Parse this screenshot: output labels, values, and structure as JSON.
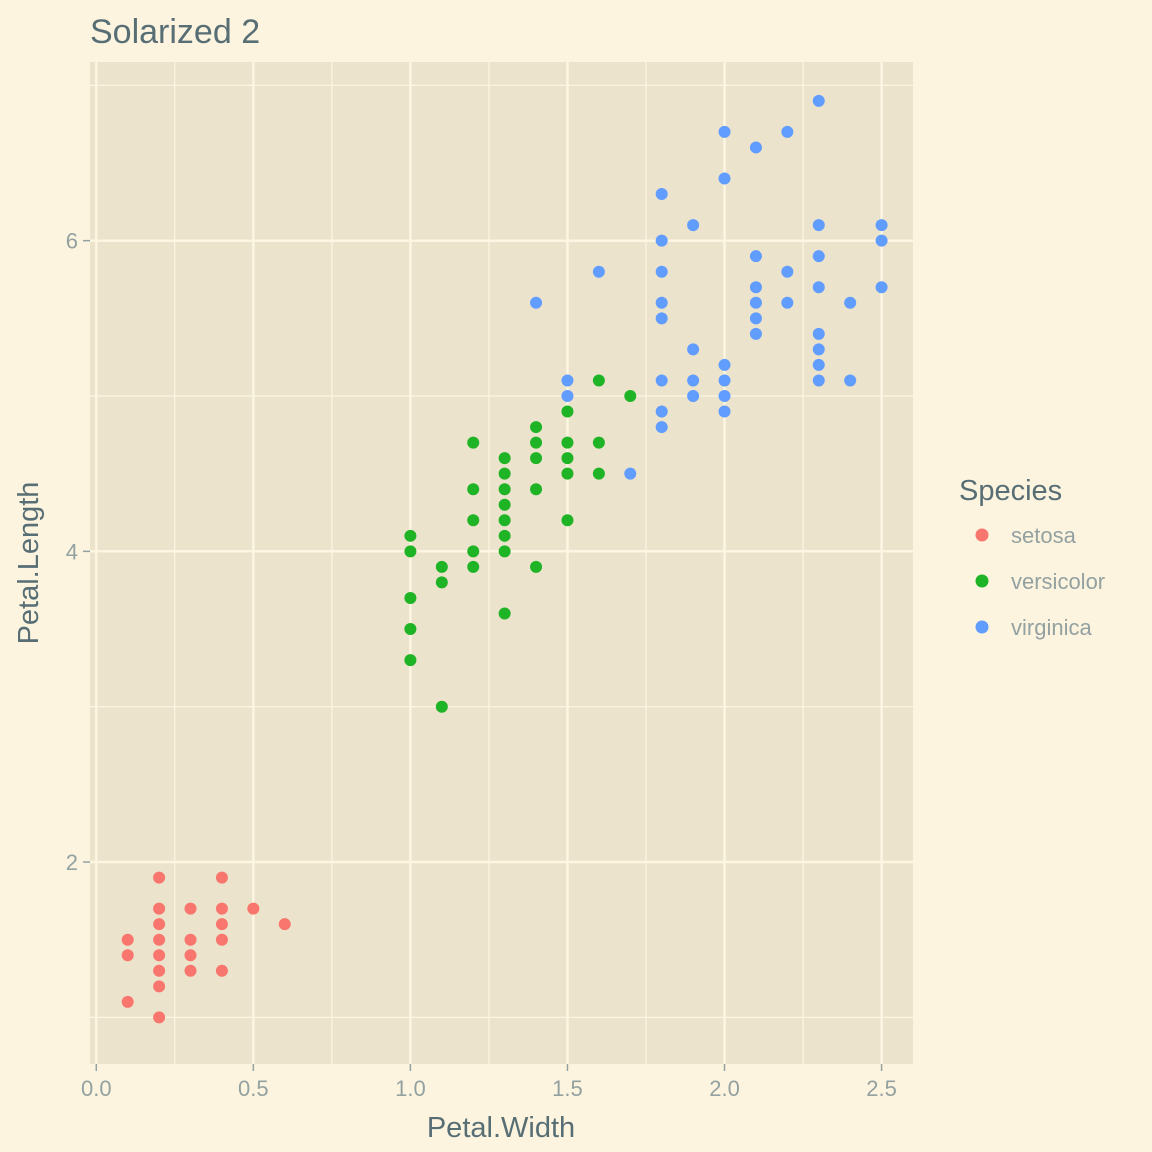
{
  "chart_data": {
    "type": "scatter",
    "title": "Solarized 2",
    "xlabel": "Petal.Width",
    "ylabel": "Petal.Length",
    "xlim": [
      -0.02,
      2.6
    ],
    "ylim": [
      0.7,
      7.15
    ],
    "x_ticks": [
      0.0,
      0.5,
      1.0,
      1.5,
      2.0,
      2.5
    ],
    "x_tick_labels": [
      "0.0",
      "0.5",
      "1.0",
      "1.5",
      "2.0",
      "2.5"
    ],
    "y_ticks": [
      2,
      4,
      6
    ],
    "y_tick_labels": [
      "2",
      "4",
      "6"
    ],
    "grid": true,
    "legend": {
      "title": "Species",
      "position": "right",
      "entries": [
        "setosa",
        "versicolor",
        "virginica"
      ]
    },
    "series": [
      {
        "name": "setosa",
        "color": "#f8766d",
        "points": [
          [
            0.1,
            1.1
          ],
          [
            0.1,
            1.4
          ],
          [
            0.1,
            1.5
          ],
          [
            0.2,
            1.0
          ],
          [
            0.2,
            1.2
          ],
          [
            0.2,
            1.3
          ],
          [
            0.2,
            1.4
          ],
          [
            0.2,
            1.5
          ],
          [
            0.2,
            1.6
          ],
          [
            0.2,
            1.7
          ],
          [
            0.2,
            1.9
          ],
          [
            0.3,
            1.3
          ],
          [
            0.3,
            1.4
          ],
          [
            0.3,
            1.5
          ],
          [
            0.3,
            1.7
          ],
          [
            0.4,
            1.3
          ],
          [
            0.4,
            1.5
          ],
          [
            0.4,
            1.6
          ],
          [
            0.4,
            1.7
          ],
          [
            0.4,
            1.9
          ],
          [
            0.5,
            1.7
          ],
          [
            0.6,
            1.6
          ]
        ]
      },
      {
        "name": "versicolor",
        "color": "#1fb326",
        "points": [
          [
            1.0,
            3.3
          ],
          [
            1.0,
            3.5
          ],
          [
            1.0,
            3.7
          ],
          [
            1.0,
            4.0
          ],
          [
            1.0,
            4.1
          ],
          [
            1.1,
            3.0
          ],
          [
            1.1,
            3.8
          ],
          [
            1.1,
            3.9
          ],
          [
            1.2,
            3.9
          ],
          [
            1.2,
            4.0
          ],
          [
            1.2,
            4.2
          ],
          [
            1.2,
            4.4
          ],
          [
            1.2,
            4.7
          ],
          [
            1.3,
            3.6
          ],
          [
            1.3,
            4.0
          ],
          [
            1.3,
            4.1
          ],
          [
            1.3,
            4.2
          ],
          [
            1.3,
            4.3
          ],
          [
            1.3,
            4.4
          ],
          [
            1.3,
            4.5
          ],
          [
            1.3,
            4.6
          ],
          [
            1.4,
            3.9
          ],
          [
            1.4,
            4.4
          ],
          [
            1.4,
            4.6
          ],
          [
            1.4,
            4.7
          ],
          [
            1.4,
            4.8
          ],
          [
            1.5,
            4.2
          ],
          [
            1.5,
            4.5
          ],
          [
            1.5,
            4.6
          ],
          [
            1.5,
            4.7
          ],
          [
            1.5,
            4.9
          ],
          [
            1.6,
            4.5
          ],
          [
            1.6,
            4.7
          ],
          [
            1.6,
            5.1
          ],
          [
            1.7,
            5.0
          ]
        ]
      },
      {
        "name": "virginica",
        "color": "#619cff",
        "points": [
          [
            1.4,
            5.6
          ],
          [
            1.5,
            5.0
          ],
          [
            1.5,
            5.1
          ],
          [
            1.6,
            5.8
          ],
          [
            1.7,
            4.5
          ],
          [
            1.8,
            4.8
          ],
          [
            1.8,
            4.9
          ],
          [
            1.8,
            5.1
          ],
          [
            1.8,
            5.5
          ],
          [
            1.8,
            5.6
          ],
          [
            1.8,
            5.8
          ],
          [
            1.8,
            6.0
          ],
          [
            1.8,
            6.3
          ],
          [
            1.9,
            5.0
          ],
          [
            1.9,
            5.1
          ],
          [
            1.9,
            5.3
          ],
          [
            1.9,
            6.1
          ],
          [
            2.0,
            4.9
          ],
          [
            2.0,
            5.0
          ],
          [
            2.0,
            5.1
          ],
          [
            2.0,
            5.2
          ],
          [
            2.0,
            6.4
          ],
          [
            2.0,
            6.7
          ],
          [
            2.1,
            5.4
          ],
          [
            2.1,
            5.5
          ],
          [
            2.1,
            5.6
          ],
          [
            2.1,
            5.7
          ],
          [
            2.1,
            5.9
          ],
          [
            2.1,
            6.6
          ],
          [
            2.2,
            5.6
          ],
          [
            2.2,
            5.8
          ],
          [
            2.2,
            6.7
          ],
          [
            2.3,
            5.1
          ],
          [
            2.3,
            5.2
          ],
          [
            2.3,
            5.3
          ],
          [
            2.3,
            5.4
          ],
          [
            2.3,
            5.7
          ],
          [
            2.3,
            5.9
          ],
          [
            2.3,
            6.1
          ],
          [
            2.3,
            6.9
          ],
          [
            2.4,
            5.1
          ],
          [
            2.4,
            5.6
          ],
          [
            2.5,
            5.7
          ],
          [
            2.5,
            6.0
          ],
          [
            2.5,
            6.1
          ]
        ]
      }
    ]
  }
}
